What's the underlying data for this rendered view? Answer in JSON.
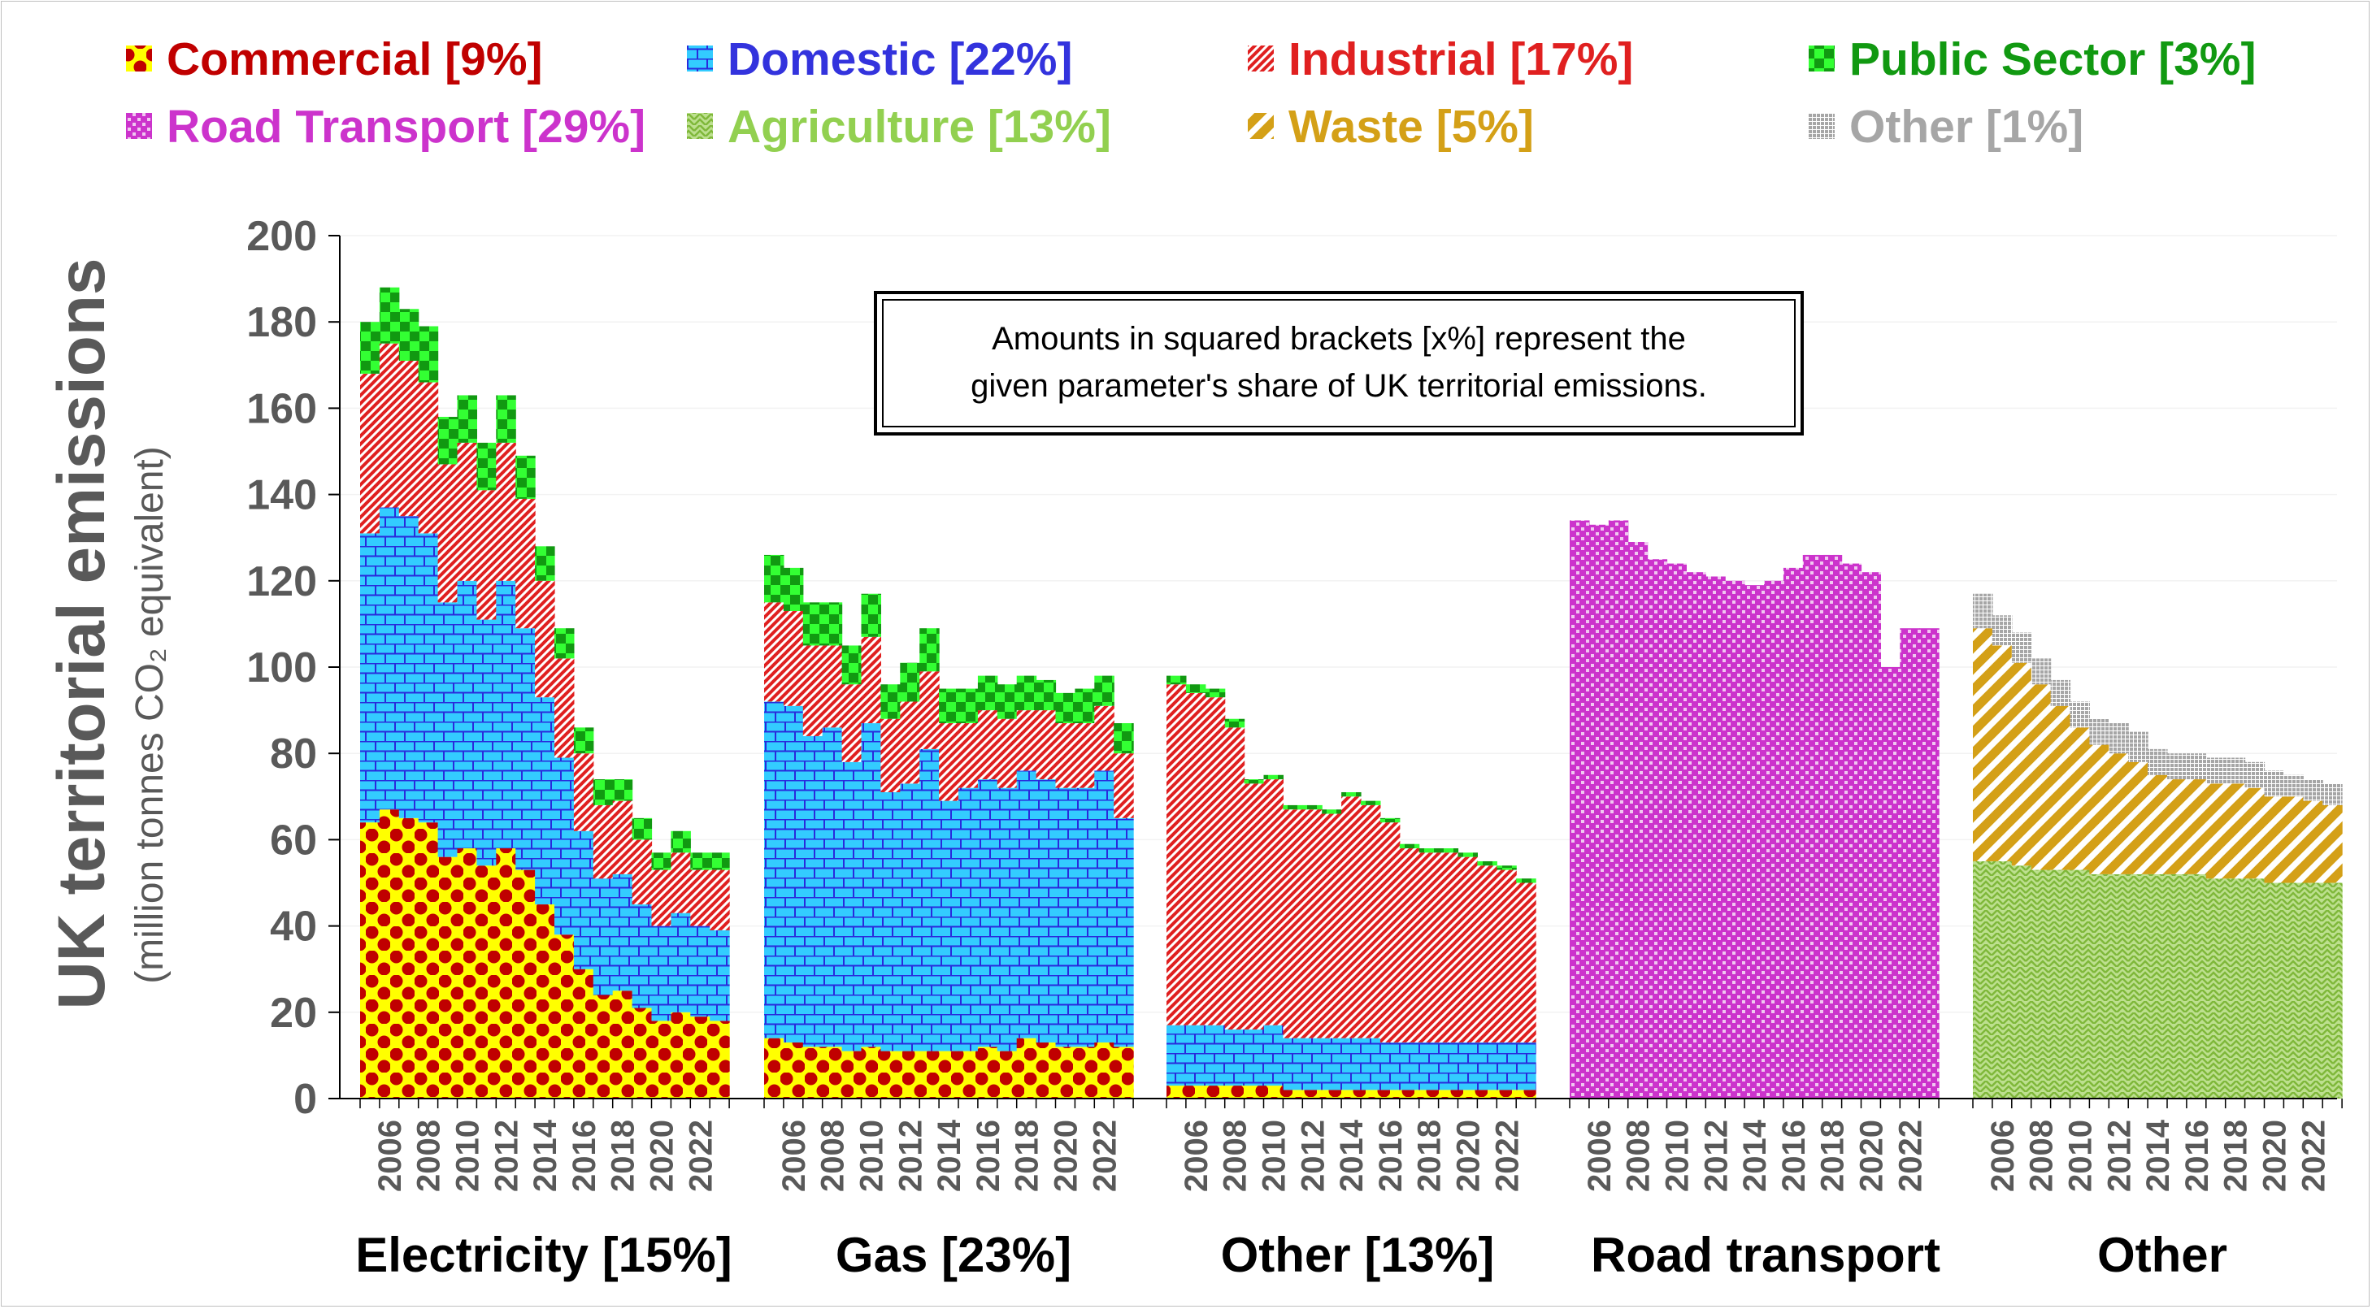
{
  "chart_data": {
    "type": "bar",
    "stacked": true,
    "ylabel": "UK territorial emissions",
    "ylabel_sub": "(million tonnes CO₂ equivalent)",
    "ylim": [
      0,
      200
    ],
    "yticks": [
      "0",
      "20",
      "40",
      "60",
      "80",
      "100",
      "120",
      "140",
      "160",
      "180",
      "200"
    ],
    "annotation": {
      "line1": "Amounts in squared brackets [x%] represent the",
      "line2": "given parameter's share of UK territorial emissions."
    },
    "legend": [
      {
        "key": "commercial",
        "label": "Commercial [9%]",
        "color": "#c00000"
      },
      {
        "key": "domestic",
        "label": "Domestic [22%]",
        "color": "#3333dd"
      },
      {
        "key": "industrial",
        "label": "Industrial [17%]",
        "color": "#e02020"
      },
      {
        "key": "public",
        "label": "Public Sector [3%]",
        "color": "#119911"
      },
      {
        "key": "road",
        "label": "Road Transport [29%]",
        "color": "#cc33cc"
      },
      {
        "key": "agriculture",
        "label": "Agriculture [13%]",
        "color": "#92d050"
      },
      {
        "key": "waste",
        "label": "Waste [5%]",
        "color": "#d4a017"
      },
      {
        "key": "other",
        "label": "Other [1%]",
        "color": "#a6a6a6"
      }
    ],
    "years": [
      2005,
      2006,
      2007,
      2008,
      2009,
      2010,
      2011,
      2012,
      2013,
      2014,
      2015,
      2016,
      2017,
      2018,
      2019,
      2020,
      2021,
      2022,
      2023
    ],
    "x_tick_labels": [
      "2006",
      "2008",
      "2010",
      "2012",
      "2014",
      "2016",
      "2018",
      "2020",
      "2022"
    ],
    "groups": [
      {
        "name": "Electricity [15%]",
        "series": [
          {
            "key": "commercial",
            "values": [
              64,
              67,
              65,
              64,
              56,
              58,
              54,
              58,
              53,
              45,
              38,
              30,
              24,
              25,
              21,
              18,
              20,
              19,
              18
            ]
          },
          {
            "key": "domestic",
            "values": [
              67,
              70,
              70,
              67,
              59,
              62,
              57,
              62,
              56,
              48,
              41,
              32,
              27,
              27,
              24,
              22,
              23,
              21,
              21
            ]
          },
          {
            "key": "industrial",
            "values": [
              37,
              38,
              36,
              35,
              32,
              32,
              30,
              32,
              30,
              27,
              23,
              18,
              17,
              17,
              15,
              13,
              14,
              13,
              14
            ]
          },
          {
            "key": "public",
            "values": [
              12,
              13,
              12,
              13,
              11,
              11,
              11,
              11,
              10,
              8,
              7,
              6,
              6,
              5,
              5,
              4,
              5,
              4,
              4
            ]
          }
        ]
      },
      {
        "name": "Gas [23%]",
        "series": [
          {
            "key": "commercial",
            "values": [
              14,
              13,
              12,
              12,
              11,
              12,
              11,
              11,
              11,
              11,
              11,
              12,
              11,
              14,
              13,
              12,
              12,
              13,
              12
            ]
          },
          {
            "key": "domestic",
            "values": [
              78,
              78,
              72,
              74,
              67,
              75,
              60,
              62,
              70,
              58,
              61,
              62,
              61,
              62,
              61,
              60,
              60,
              63,
              53
            ]
          },
          {
            "key": "industrial",
            "values": [
              23,
              22,
              21,
              19,
              18,
              20,
              17,
              19,
              18,
              18,
              15,
              16,
              16,
              14,
              16,
              15,
              15,
              15,
              15
            ]
          },
          {
            "key": "public",
            "values": [
              11,
              10,
              10,
              10,
              9,
              10,
              8,
              9,
              10,
              8,
              8,
              8,
              8,
              8,
              7,
              7,
              8,
              7,
              7
            ]
          }
        ]
      },
      {
        "name": "Other [13%]",
        "series": [
          {
            "key": "commercial",
            "values": [
              3,
              3,
              3,
              3,
              3,
              3,
              2,
              2,
              2,
              2,
              2,
              2,
              2,
              2,
              2,
              2,
              2,
              2,
              2
            ]
          },
          {
            "key": "domestic",
            "values": [
              14,
              14,
              14,
              13,
              13,
              14,
              12,
              12,
              12,
              12,
              12,
              11,
              11,
              11,
              11,
              11,
              11,
              11,
              11
            ]
          },
          {
            "key": "industrial",
            "values": [
              79,
              77,
              76,
              70,
              57,
              57,
              53,
              53,
              52,
              56,
              54,
              51,
              45,
              44,
              44,
              43,
              41,
              40,
              37
            ]
          },
          {
            "key": "public",
            "values": [
              2,
              2,
              2,
              2,
              1,
              1,
              1,
              1,
              1,
              1,
              1,
              1,
              1,
              1,
              1,
              1,
              1,
              1,
              1
            ]
          }
        ]
      },
      {
        "name": "Road transport",
        "series": [
          {
            "key": "road",
            "values": [
              134,
              133,
              134,
              129,
              125,
              124,
              122,
              121,
              120,
              119,
              120,
              123,
              126,
              126,
              124,
              122,
              100,
              109,
              109
            ]
          }
        ]
      },
      {
        "name": "Other",
        "series": [
          {
            "key": "agriculture",
            "values": [
              55,
              55,
              54,
              53,
              53,
              53,
              52,
              52,
              52,
              52,
              52,
              52,
              51,
              51,
              51,
              50,
              50,
              50,
              50
            ]
          },
          {
            "key": "waste",
            "values": [
              54,
              50,
              47,
              43,
              38,
              33,
              30,
              28,
              26,
              23,
              22,
              22,
              22,
              22,
              21,
              20,
              20,
              19,
              18
            ]
          },
          {
            "key": "other",
            "values": [
              8,
              7,
              7,
              6,
              6,
              6,
              6,
              7,
              7,
              6,
              6,
              6,
              6,
              6,
              6,
              6,
              5,
              5,
              5
            ]
          }
        ]
      }
    ]
  }
}
